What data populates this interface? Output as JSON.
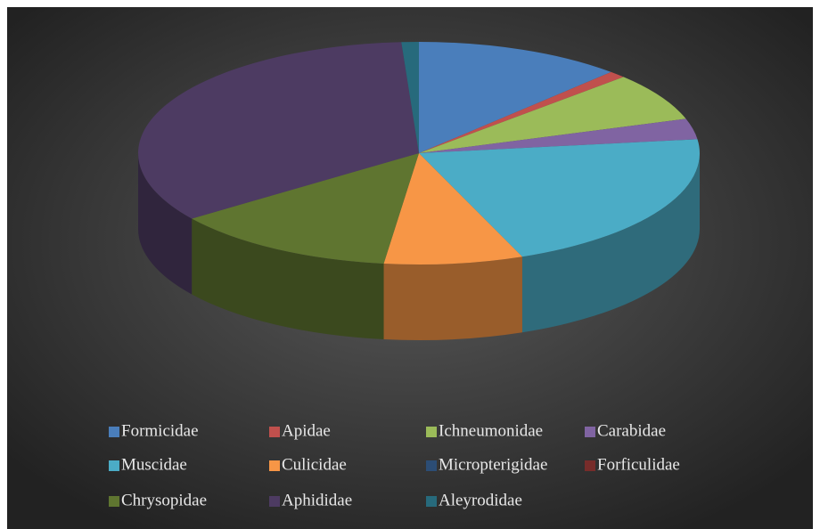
{
  "chart_data": {
    "type": "pie3d",
    "categories": [
      "Formicidae",
      "Apidae",
      "Ichneumonidae",
      "Carabidae",
      "Muscidae",
      "Culicidae",
      "Micropterigidae",
      "Forficulidae",
      "Chrysopidae",
      "Aphididae",
      "Aleyrodidae"
    ],
    "values": [
      12,
      1,
      7,
      3,
      21,
      8,
      0,
      0,
      13,
      34,
      1
    ],
    "colors": [
      "#4a7ebb",
      "#c0504d",
      "#9bbb59",
      "#8064a2",
      "#4bacc6",
      "#f79646",
      "#2c4d75",
      "#772c2a",
      "#5f7530",
      "#4d3b62",
      "#276a7c"
    ],
    "legend": "bottom"
  }
}
